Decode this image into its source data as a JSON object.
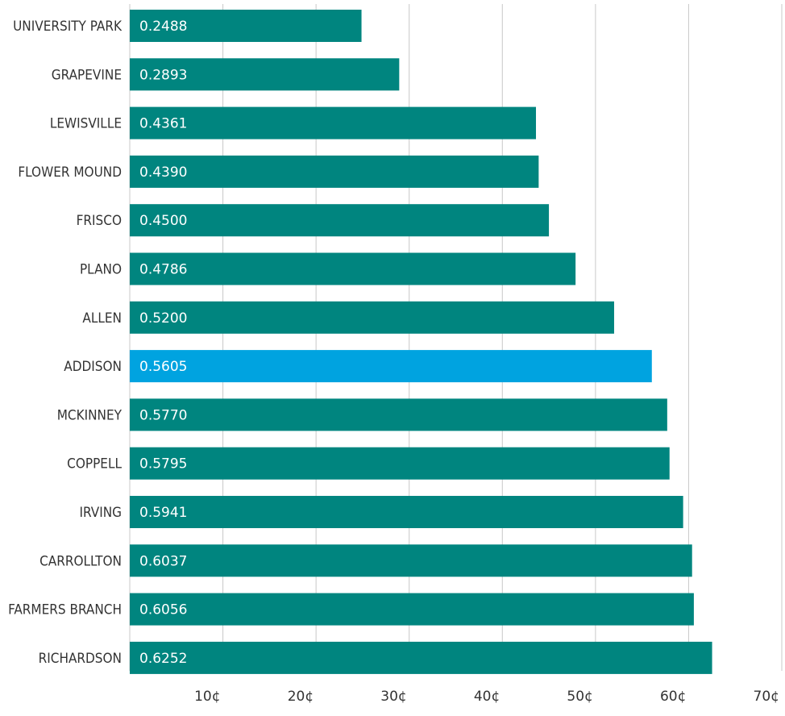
{
  "chart_data": {
    "type": "bar",
    "orientation": "horizontal",
    "categories": [
      "UNIVERSITY PARK",
      "GRAPEVINE",
      "LEWISVILLE",
      "FLOWER MOUND",
      "FRISCO",
      "PLANO",
      "ALLEN",
      "ADDISON",
      "MCKINNEY",
      "COPPELL",
      "IRVING",
      "CARROLLTON",
      "FARMERS BRANCH",
      "RICHARDSON"
    ],
    "values": [
      0.2488,
      0.2893,
      0.4361,
      0.439,
      0.45,
      0.4786,
      0.52,
      0.5605,
      0.577,
      0.5795,
      0.5941,
      0.6037,
      0.6056,
      0.6252
    ],
    "value_labels": [
      "0.2488",
      "0.2893",
      "0.4361",
      "0.4390",
      "0.4500",
      "0.4786",
      "0.5200",
      "0.5605",
      "0.5770",
      "0.5795",
      "0.5941",
      "0.6037",
      "0.6056",
      "0.6252"
    ],
    "highlight": "ADDISON",
    "xlim": [
      0,
      0.7
    ],
    "xticks": [
      0.1,
      0.2,
      0.3,
      0.4,
      0.5,
      0.6,
      0.7
    ],
    "xtick_labels": [
      "10¢",
      "20¢",
      "30¢",
      "40¢",
      "50¢",
      "60¢",
      "70¢"
    ],
    "grid": true,
    "colors": {
      "bar": "#00857f",
      "highlight": "#00a3e0",
      "grid": "#c8c8c8"
    }
  }
}
